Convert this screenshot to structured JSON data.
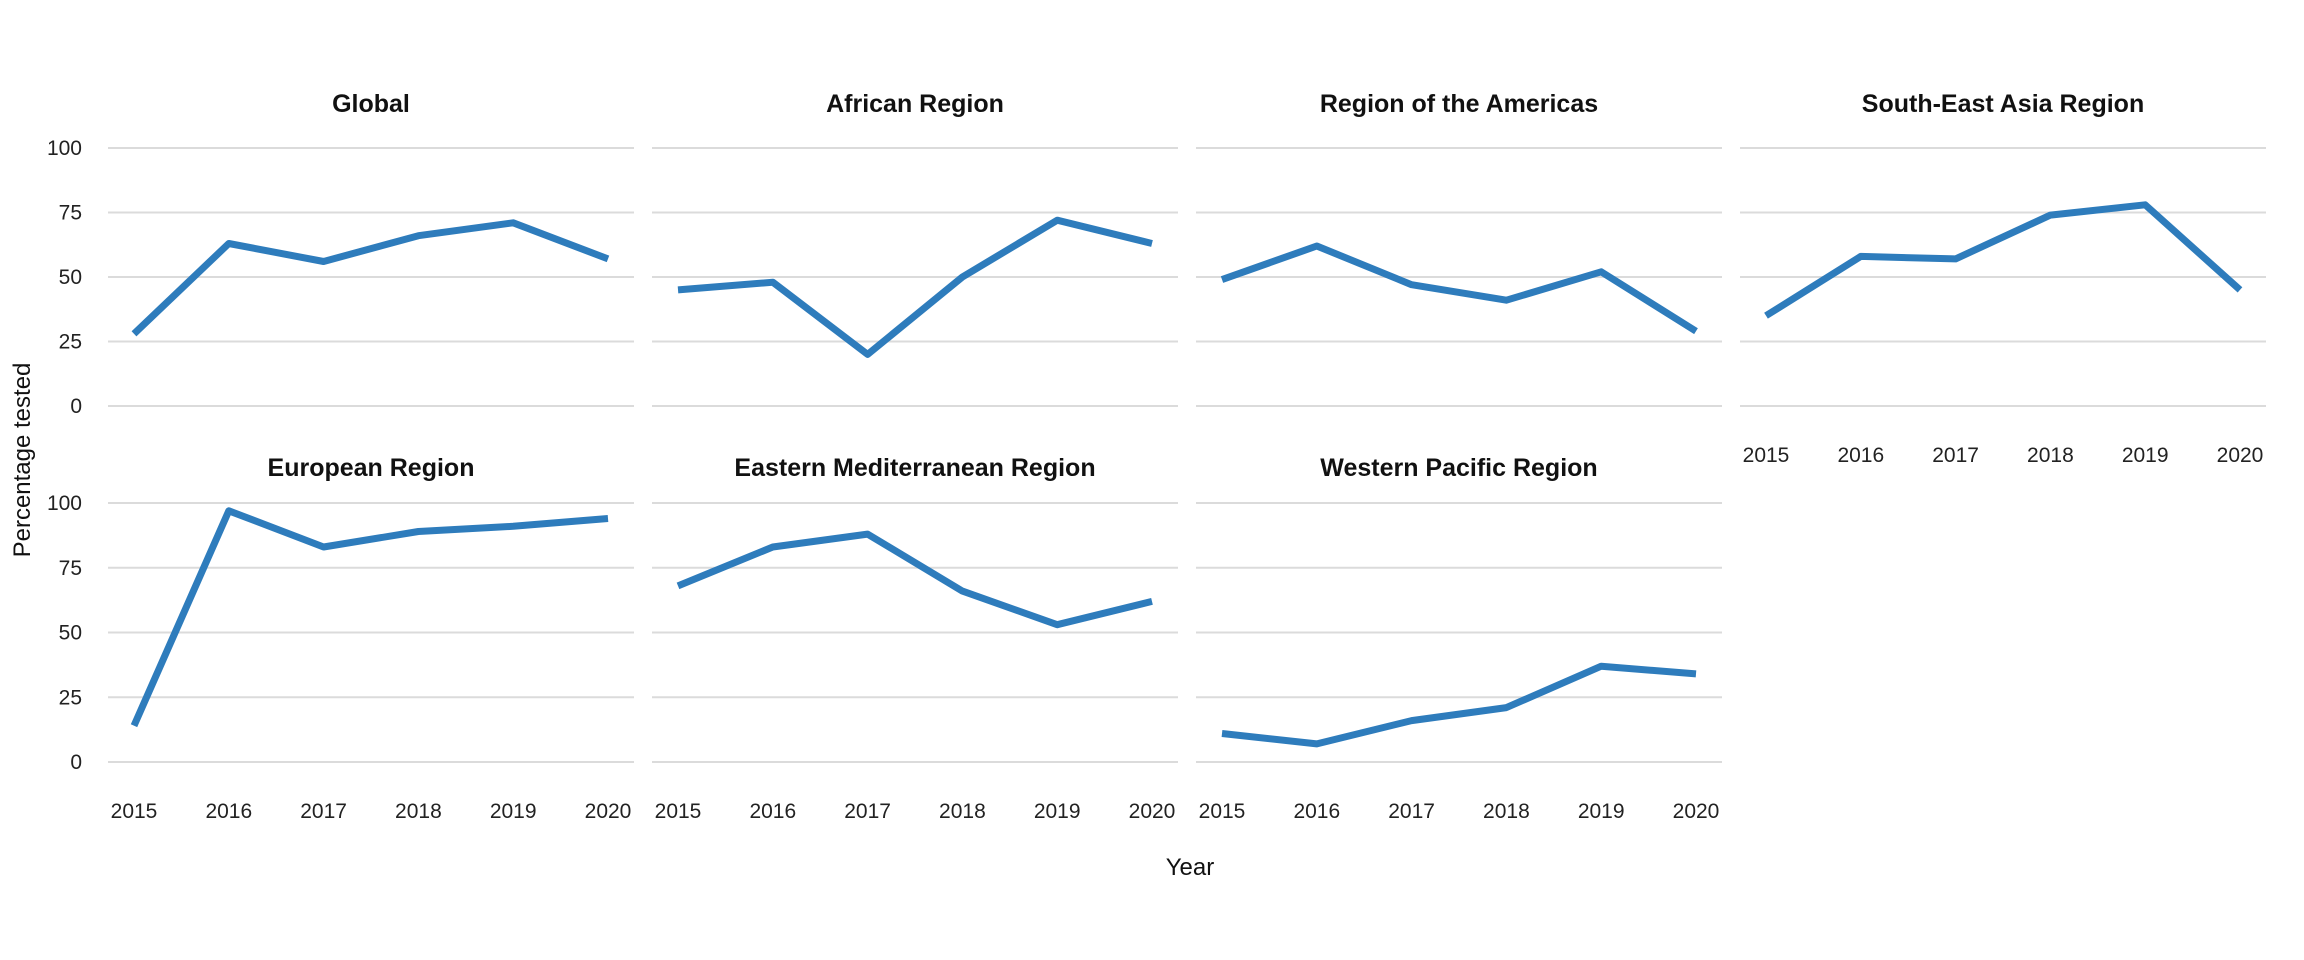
{
  "chart_data": {
    "type": "line",
    "title": "",
    "xlabel": "Year",
    "ylabel": "Percentage tested",
    "x_categories": [
      "2015",
      "2016",
      "2017",
      "2018",
      "2019",
      "2020"
    ],
    "y_ticks": [
      0,
      25,
      50,
      75,
      100
    ],
    "ylim": [
      0,
      100
    ],
    "grid": "horizontal-major-only",
    "legend": "none",
    "line_color": "#2e7cbc",
    "gridline_color": "#dbdbdb",
    "facets": [
      {
        "name": "Global",
        "values": [
          28,
          63,
          56,
          66,
          71,
          57
        ]
      },
      {
        "name": "African Region",
        "values": [
          45,
          48,
          20,
          50,
          72,
          63
        ]
      },
      {
        "name": "Region of the Americas",
        "values": [
          49,
          62,
          47,
          41,
          52,
          29
        ]
      },
      {
        "name": "South-East Asia Region",
        "values": [
          35,
          58,
          57,
          74,
          78,
          45
        ]
      },
      {
        "name": "European Region",
        "values": [
          14,
          97,
          83,
          89,
          91,
          94
        ]
      },
      {
        "name": "Eastern Mediterranean Region",
        "values": [
          68,
          83,
          88,
          66,
          53,
          62
        ]
      },
      {
        "name": "Western Pacific Region",
        "values": [
          11,
          7,
          16,
          21,
          37,
          34
        ]
      }
    ]
  }
}
